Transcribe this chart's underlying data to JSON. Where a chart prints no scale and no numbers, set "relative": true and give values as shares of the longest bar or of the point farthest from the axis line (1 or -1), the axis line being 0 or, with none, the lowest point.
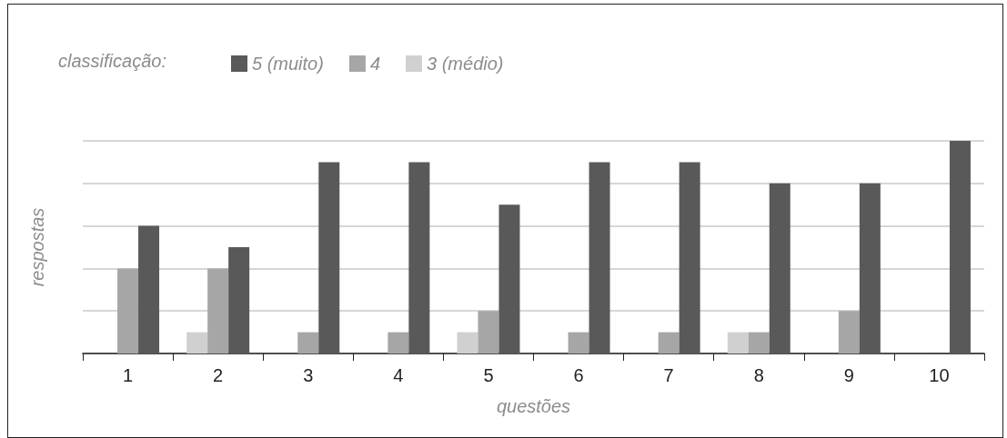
{
  "chart_data": {
    "type": "bar",
    "relative": true,
    "xlabel": "questões",
    "ylabel": "respostas",
    "legend_title": "classificação:",
    "legend": "top left",
    "grid": "y",
    "categories": [
      "1",
      "2",
      "3",
      "4",
      "5",
      "6",
      "7",
      "8",
      "9",
      "10"
    ],
    "series": [
      {
        "name": "3 (médio)",
        "color": "#d0d0d0",
        "values": [
          0,
          0.1,
          0,
          0,
          0.1,
          0,
          0,
          0.1,
          0,
          0
        ]
      },
      {
        "name": "4",
        "color": "#a6a6a6",
        "values": [
          0.4,
          0.4,
          0.1,
          0.1,
          0.2,
          0.1,
          0.1,
          0.1,
          0.2,
          0
        ]
      },
      {
        "name": "5 (muito)",
        "color": "#595959",
        "values": [
          0.6,
          0.5,
          0.9,
          0.9,
          0.7,
          0.9,
          0.9,
          0.8,
          0.8,
          1
        ]
      }
    ]
  }
}
